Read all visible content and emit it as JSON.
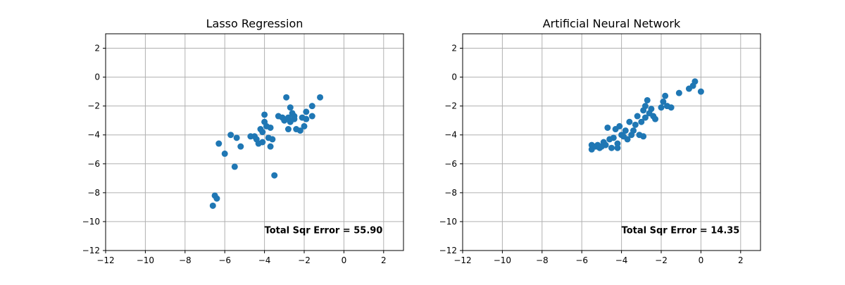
{
  "chart_data": [
    {
      "type": "scatter",
      "title": "Lasso Regression",
      "xlabel": "",
      "ylabel": "",
      "xlim": [
        -12,
        3
      ],
      "ylim": [
        -12,
        3
      ],
      "xticks": [
        -12,
        -10,
        -8,
        -6,
        -4,
        -2,
        0,
        2
      ],
      "yticks": [
        -12,
        -10,
        -8,
        -6,
        -4,
        -2,
        0,
        2
      ],
      "grid": true,
      "color": "#1f77b4",
      "annotation": "Total Sqr Error = 55.90",
      "points": [
        [
          -6.6,
          -8.9
        ],
        [
          -6.5,
          -8.2
        ],
        [
          -6.4,
          -8.4
        ],
        [
          -6.3,
          -4.6
        ],
        [
          -6.0,
          -5.3
        ],
        [
          -5.7,
          -4.0
        ],
        [
          -5.5,
          -6.2
        ],
        [
          -5.4,
          -4.2
        ],
        [
          -5.2,
          -4.8
        ],
        [
          -4.7,
          -4.1
        ],
        [
          -4.5,
          -4.1
        ],
        [
          -4.4,
          -4.3
        ],
        [
          -4.3,
          -4.6
        ],
        [
          -4.2,
          -3.6
        ],
        [
          -4.1,
          -4.5
        ],
        [
          -4.1,
          -3.8
        ],
        [
          -4.0,
          -2.6
        ],
        [
          -4.0,
          -3.1
        ],
        [
          -3.9,
          -3.4
        ],
        [
          -3.8,
          -4.2
        ],
        [
          -3.7,
          -4.8
        ],
        [
          -3.7,
          -3.5
        ],
        [
          -3.6,
          -4.3
        ],
        [
          -3.5,
          -6.8
        ],
        [
          -3.3,
          -2.7
        ],
        [
          -3.1,
          -2.8
        ],
        [
          -3.0,
          -3.0
        ],
        [
          -2.9,
          -1.4
        ],
        [
          -2.8,
          -2.8
        ],
        [
          -2.8,
          -3.6
        ],
        [
          -2.7,
          -3.1
        ],
        [
          -2.7,
          -2.1
        ],
        [
          -2.6,
          -2.5
        ],
        [
          -2.5,
          -2.9
        ],
        [
          -2.5,
          -2.7
        ],
        [
          -2.4,
          -3.6
        ],
        [
          -2.2,
          -3.7
        ],
        [
          -2.1,
          -2.8
        ],
        [
          -2.0,
          -3.4
        ],
        [
          -1.9,
          -2.9
        ],
        [
          -1.9,
          -2.4
        ],
        [
          -1.6,
          -2.0
        ],
        [
          -1.6,
          -2.7
        ],
        [
          -1.2,
          -1.4
        ]
      ]
    },
    {
      "type": "scatter",
      "title": "Artificial Neural Network",
      "xlabel": "",
      "ylabel": "",
      "xlim": [
        -12,
        3
      ],
      "ylim": [
        -12,
        3
      ],
      "xticks": [
        -12,
        -10,
        -8,
        -6,
        -4,
        -2,
        0,
        2
      ],
      "yticks": [
        -12,
        -10,
        -8,
        -6,
        -4,
        -2,
        0,
        2
      ],
      "grid": true,
      "color": "#1f77b4",
      "annotation": "Total Sqr Error = 14.35",
      "points": [
        [
          -5.5,
          -4.7
        ],
        [
          -5.5,
          -5.0
        ],
        [
          -5.3,
          -4.8
        ],
        [
          -5.2,
          -4.7
        ],
        [
          -5.1,
          -4.9
        ],
        [
          -5.0,
          -4.8
        ],
        [
          -4.9,
          -4.5
        ],
        [
          -4.8,
          -4.7
        ],
        [
          -4.7,
          -3.5
        ],
        [
          -4.6,
          -4.3
        ],
        [
          -4.5,
          -4.9
        ],
        [
          -4.4,
          -4.2
        ],
        [
          -4.3,
          -3.6
        ],
        [
          -4.2,
          -4.6
        ],
        [
          -4.2,
          -4.9
        ],
        [
          -4.1,
          -3.4
        ],
        [
          -4.0,
          -4.0
        ],
        [
          -3.9,
          -4.1
        ],
        [
          -3.8,
          -3.7
        ],
        [
          -3.7,
          -4.3
        ],
        [
          -3.6,
          -3.1
        ],
        [
          -3.5,
          -4.0
        ],
        [
          -3.4,
          -3.7
        ],
        [
          -3.3,
          -3.3
        ],
        [
          -3.2,
          -2.7
        ],
        [
          -3.1,
          -4.0
        ],
        [
          -3.0,
          -3.1
        ],
        [
          -2.9,
          -4.1
        ],
        [
          -2.9,
          -2.3
        ],
        [
          -2.8,
          -2.8
        ],
        [
          -2.8,
          -2.0
        ],
        [
          -2.7,
          -1.6
        ],
        [
          -2.6,
          -2.5
        ],
        [
          -2.5,
          -2.2
        ],
        [
          -2.4,
          -2.7
        ],
        [
          -2.3,
          -2.9
        ],
        [
          -2.0,
          -2.1
        ],
        [
          -1.9,
          -1.7
        ],
        [
          -1.8,
          -1.3
        ],
        [
          -1.7,
          -2.0
        ],
        [
          -1.5,
          -2.1
        ],
        [
          -1.1,
          -1.1
        ],
        [
          -0.6,
          -0.8
        ],
        [
          -0.4,
          -0.6
        ],
        [
          -0.3,
          -0.3
        ],
        [
          0.0,
          -1.0
        ]
      ]
    }
  ]
}
